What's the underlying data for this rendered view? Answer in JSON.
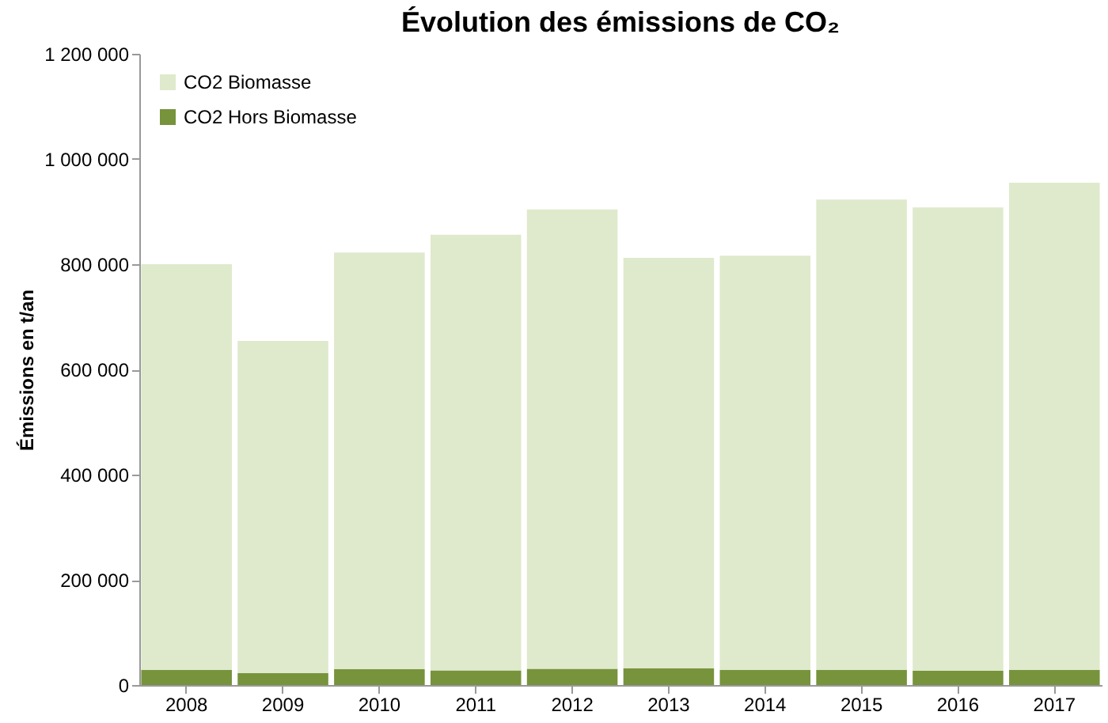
{
  "chart_data": {
    "type": "bar",
    "title": "Évolution des émissions de CO₂",
    "ylabel": "Émissions en t/an",
    "categories": [
      "2008",
      "2009",
      "2010",
      "2011",
      "2012",
      "2013",
      "2014",
      "2015",
      "2016",
      "2017"
    ],
    "stacked": true,
    "series": [
      {
        "name": "CO2 Hors Biomasse",
        "color": "#77933c",
        "values": [
          29000,
          23000,
          30000,
          28000,
          31000,
          32000,
          29000,
          29000,
          27000,
          29000
        ]
      },
      {
        "name": "CO2 Biomasse",
        "color": "#dfe9cc",
        "values": [
          771000,
          631000,
          792000,
          828000,
          873000,
          780000,
          787000,
          894000,
          881000,
          926000
        ]
      }
    ],
    "ylim": [
      0,
      1200000
    ],
    "yticks": [
      0,
      200000,
      400000,
      600000,
      800000,
      1000000,
      1200000
    ],
    "grid": false,
    "legend": "top left"
  }
}
